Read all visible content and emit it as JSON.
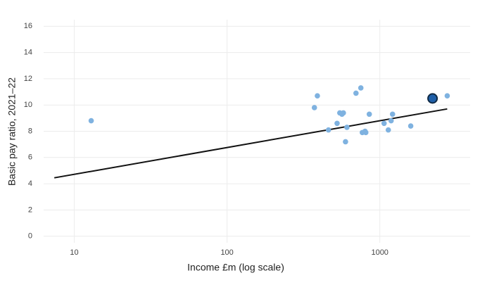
{
  "chart_data": {
    "type": "scatter",
    "xlabel": "Income £m (log scale)",
    "ylabel": "Basic pay ratio, 2021–22",
    "xscale": "log",
    "grid": true,
    "xlim": [
      6.3,
      3900
    ],
    "ylim": [
      -0.5,
      16.5
    ],
    "xticks": [
      10,
      100,
      1000
    ],
    "yticks": [
      0,
      2,
      4,
      6,
      8,
      10,
      12,
      14,
      16
    ],
    "series": [
      {
        "color": "#7fb2e0",
        "x": [
          12.9,
          373,
          390,
          461,
          525,
          547,
          565,
          577,
          596,
          609,
          698,
          751,
          768,
          800,
          809,
          853,
          1066,
          1136,
          1185,
          1211,
          1593,
          2761
        ],
        "values": [
          8.8,
          9.8,
          10.7,
          8.1,
          8.6,
          9.4,
          9.3,
          9.4,
          7.2,
          8.3,
          10.9,
          11.3,
          7.9,
          8.0,
          7.9,
          9.3,
          8.6,
          8.1,
          8.8,
          9.3,
          8.4,
          10.7
        ]
      },
      {
        "color": "#1f5fa8",
        "x": [
          2213
        ],
        "values": [
          10.5
        ]
      }
    ],
    "trend": {
      "color": "#111111",
      "x": [
        7.4,
        2760
      ],
      "values": [
        4.45,
        9.7
      ]
    }
  }
}
